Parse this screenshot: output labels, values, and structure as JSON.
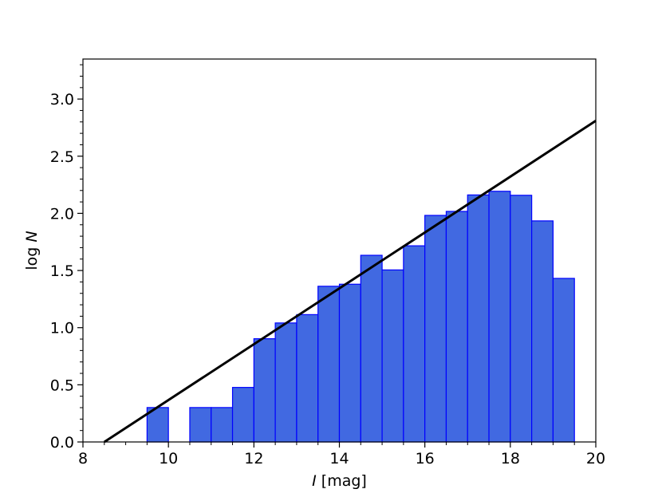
{
  "chart_data": {
    "type": "bar",
    "xlabel_var": "I",
    "xlabel_unit": " [mag]",
    "ylabel_prefix": "log ",
    "ylabel_var": "N",
    "xlim": [
      8,
      20
    ],
    "ylim": [
      0,
      3.35
    ],
    "grid": false,
    "legend": "none",
    "x_ticks": [
      8,
      10,
      12,
      14,
      16,
      18,
      20
    ],
    "y_ticks": [
      "0.0",
      "0.5",
      "1.0",
      "1.5",
      "2.0",
      "2.5",
      "3.0"
    ],
    "bin_width": 0.5,
    "bins": [
      {
        "left": 9.5,
        "value": 0.301
      },
      {
        "left": 10.5,
        "value": 0.301
      },
      {
        "left": 11.0,
        "value": 0.301
      },
      {
        "left": 11.5,
        "value": 0.477
      },
      {
        "left": 12.0,
        "value": 0.903
      },
      {
        "left": 12.5,
        "value": 1.041
      },
      {
        "left": 13.0,
        "value": 1.114
      },
      {
        "left": 13.5,
        "value": 1.362
      },
      {
        "left": 14.0,
        "value": 1.38
      },
      {
        "left": 14.5,
        "value": 1.633
      },
      {
        "left": 15.0,
        "value": 1.505
      },
      {
        "left": 15.5,
        "value": 1.716
      },
      {
        "left": 16.0,
        "value": 1.982
      },
      {
        "left": 16.5,
        "value": 2.017
      },
      {
        "left": 17.0,
        "value": 2.161
      },
      {
        "left": 17.5,
        "value": 2.193
      },
      {
        "left": 18.0,
        "value": 2.158
      },
      {
        "left": 18.5,
        "value": 1.934
      },
      {
        "left": 19.0,
        "value": 1.431
      }
    ],
    "fit_line": {
      "x": [
        8.5,
        20.0
      ],
      "y": [
        0.0,
        2.81
      ]
    },
    "colors": {
      "bar_fill": "#4169e1",
      "bar_edge": "#0000ff",
      "line": "#000000",
      "axes": "#000000"
    }
  }
}
